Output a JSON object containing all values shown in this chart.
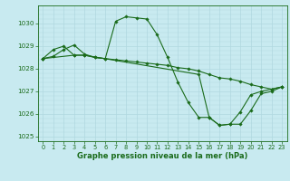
{
  "title": "Graphe pression niveau de la mer (hPa)",
  "background_color": "#c8eaf0",
  "grid_color": "#b0d8e0",
  "line_color": "#1a6b1a",
  "xlim_min": -0.5,
  "xlim_max": 23.5,
  "ylim_min": 1024.8,
  "ylim_max": 1030.8,
  "yticks": [
    1025,
    1026,
    1027,
    1028,
    1029,
    1030
  ],
  "xticks": [
    0,
    1,
    2,
    3,
    4,
    5,
    6,
    7,
    8,
    9,
    10,
    11,
    12,
    13,
    14,
    15,
    16,
    17,
    18,
    19,
    20,
    21,
    22,
    23
  ],
  "series": [
    {
      "x": [
        0,
        1,
        2,
        3,
        4,
        5,
        6,
        7,
        8,
        9,
        10,
        11,
        12,
        13,
        14,
        15,
        16,
        17,
        18,
        19,
        20,
        21,
        22,
        23
      ],
      "y": [
        1028.45,
        1028.85,
        1029.0,
        1028.6,
        1028.6,
        1028.5,
        1028.45,
        1030.1,
        1030.3,
        1030.25,
        1030.2,
        1029.5,
        1028.5,
        1027.4,
        1026.5,
        1025.85,
        1025.85,
        1025.5,
        1025.55,
        1026.1,
        1026.85,
        1027.0,
        1027.1,
        1027.2
      ]
    },
    {
      "x": [
        0,
        1,
        2,
        3,
        4,
        5,
        6,
        7,
        8,
        9,
        10,
        11,
        12,
        13,
        14,
        15,
        16,
        17,
        18,
        19,
        20,
        21,
        22,
        23
      ],
      "y": [
        1028.45,
        1028.55,
        1028.85,
        1029.05,
        1028.65,
        1028.5,
        1028.45,
        1028.4,
        1028.35,
        1028.3,
        1028.25,
        1028.2,
        1028.15,
        1028.05,
        1028.0,
        1027.9,
        1027.75,
        1027.6,
        1027.55,
        1027.45,
        1027.3,
        1027.2,
        1027.1,
        1027.2
      ]
    },
    {
      "x": [
        0,
        3,
        4,
        15,
        16,
        17,
        18,
        19,
        20,
        21,
        22,
        23
      ],
      "y": [
        1028.45,
        1028.6,
        1028.6,
        1027.75,
        1025.85,
        1025.5,
        1025.55,
        1025.55,
        1026.15,
        1026.9,
        1027.0,
        1027.2
      ]
    }
  ]
}
